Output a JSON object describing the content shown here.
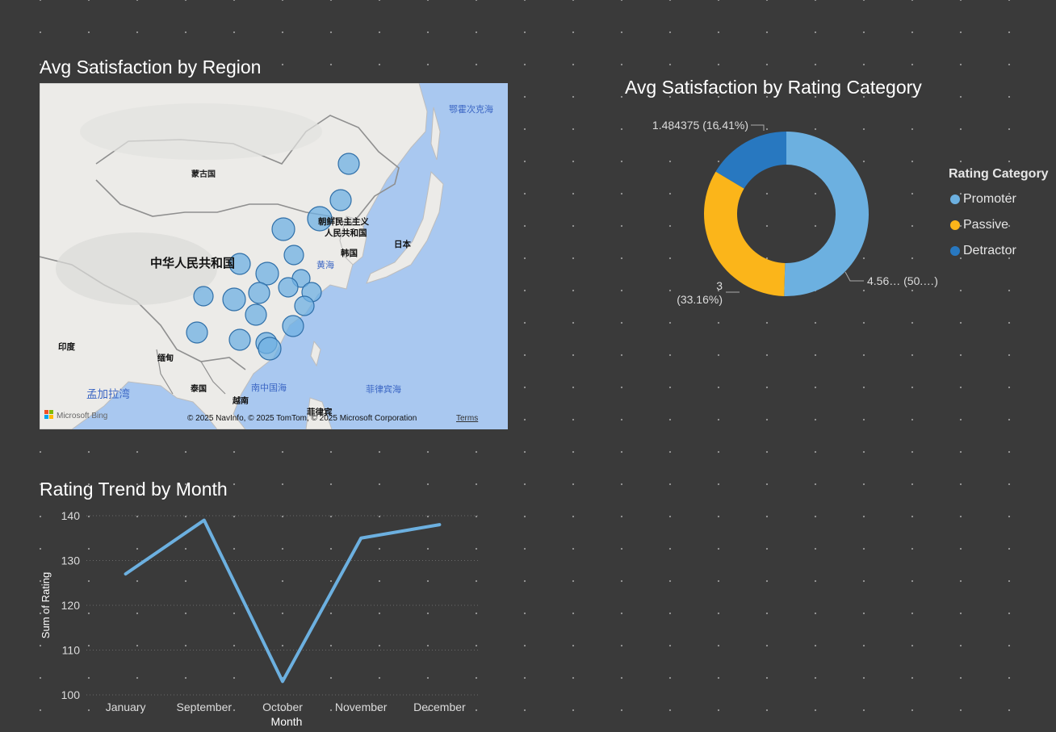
{
  "map": {
    "title": "Avg Satisfaction by Region",
    "labels": {
      "mongolia": "蒙古国",
      "china": "中华人民共和国",
      "north_korea_line1": "朝鲜民主主义",
      "north_korea_line2": "人民共和国",
      "south_korea": "韩国",
      "japan": "日本",
      "india": "印度",
      "myanmar": "缅甸",
      "thailand": "泰国",
      "vietnam": "越南",
      "philippines": "菲律宾",
      "bangladesh_bay": "孟加拉湾",
      "south_china_sea": "南中国海",
      "philippine_sea": "菲律宾海",
      "yellow_sea": "黄海",
      "okhotsk_sea": "鄂霍次克海"
    },
    "attribution": "© 2025 NavInfo, © 2025 TomTom, © 2025 Microsoft Corporation",
    "terms_link": "Terms",
    "bing_logo": "Microsoft Bing",
    "bubble_color": "#6fb0e3"
  },
  "donut": {
    "title": "Avg Satisfaction by Rating Category",
    "legend_title": "Rating Category",
    "labels": {
      "detractor": "1.484375 (16.41%)",
      "promoter": "4.56… (50.…)",
      "passive_value": "3",
      "passive_pct": "(33.16%)"
    }
  },
  "line": {
    "title": "Rating Trend by Month"
  },
  "chart_data": [
    {
      "type": "pie",
      "title": "Avg Satisfaction by Rating Category",
      "legend_title": "Rating Category",
      "legend_position": "right",
      "categories": [
        "Promoter",
        "Passive",
        "Detractor"
      ],
      "values": [
        4.5625,
        3,
        1.484375
      ],
      "percentages": [
        50.43,
        33.16,
        16.41
      ],
      "colors": [
        "#6cb0e0",
        "#fbb51a",
        "#2878c0"
      ]
    },
    {
      "type": "line",
      "title": "Rating Trend by Month",
      "categories": [
        "January",
        "September",
        "October",
        "November",
        "December"
      ],
      "series": [
        {
          "values": [
            127,
            139,
            103,
            135,
            138
          ]
        }
      ],
      "xlabel": "Month",
      "ylabel": "Sum of Rating",
      "ylim": [
        100,
        140
      ],
      "yticks": [
        100,
        110,
        120,
        130,
        140
      ],
      "grid": true,
      "color": "#6cb0e0"
    }
  ]
}
